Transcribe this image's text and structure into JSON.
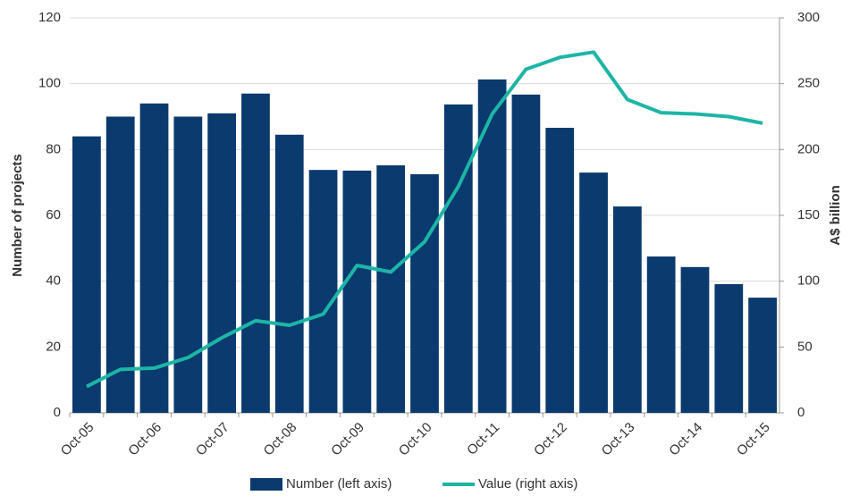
{
  "chart_data": {
    "type": "bar-line",
    "categories": [
      "Oct-05",
      null,
      "Oct-06",
      null,
      "Oct-07",
      null,
      "Oct-08",
      null,
      "Oct-09",
      null,
      "Oct-10",
      null,
      "Oct-11",
      null,
      "Oct-12",
      null,
      "Oct-13",
      null,
      "Oct-14",
      null,
      "Oct-15"
    ],
    "series": [
      {
        "name": "Number (left axis)",
        "type": "bar",
        "color": "#0a3a6e",
        "axis": "y",
        "values": [
          84,
          90,
          94,
          90,
          91,
          97,
          84.5,
          73.8,
          73.6,
          75.2,
          72.5,
          93.7,
          101.3,
          96.7,
          86.6,
          73,
          62.7,
          47.5,
          44.3,
          39.1,
          35
        ]
      },
      {
        "name": "Value (right axis)",
        "type": "line",
        "color": "#1db5a6",
        "axis": "y2",
        "values": [
          20,
          33,
          34,
          42,
          57,
          70,
          66.5,
          75,
          112,
          107,
          130,
          172,
          227,
          261,
          270,
          274,
          238,
          228,
          227,
          225,
          220
        ]
      }
    ],
    "y_label": "Number of projects",
    "y2_label": "A$ billion",
    "ylim": [
      0,
      120
    ],
    "yticks": [
      0,
      20,
      40,
      60,
      80,
      100,
      120
    ],
    "y2lim": [
      0,
      300
    ],
    "y2ticks": [
      0,
      50,
      100,
      150,
      200,
      250,
      300
    ],
    "grid": true,
    "legend": "bottom"
  }
}
